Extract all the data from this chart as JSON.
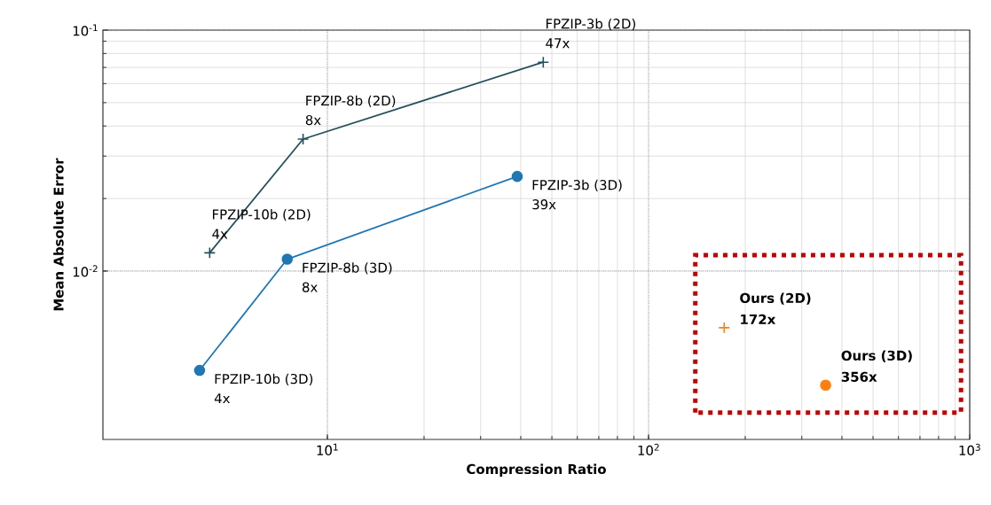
{
  "chart_data": {
    "type": "line",
    "xlabel": "Compression Ratio",
    "ylabel": "Mean Absolute Error",
    "log": "xy",
    "grid": true,
    "xlim": [
      2,
      1000
    ],
    "ylim": [
      0.002,
      0.1
    ],
    "xticks": [
      {
        "value": 10,
        "label": "10$^{1}$"
      },
      {
        "value": 100,
        "label": "10$^{2}$"
      },
      {
        "value": 1000,
        "label": "10$^{3}$"
      }
    ],
    "yticks": [
      {
        "value": 0.01,
        "label": "10$^{-2}$"
      },
      {
        "value": 0.1,
        "label": "10$^{-1}$"
      }
    ],
    "series": [
      {
        "color": "#244f5b",
        "marker": "cross",
        "x": [
          4.3,
          8.4,
          47
        ],
        "values": [
          0.0119,
          0.0353,
          0.0736
        ]
      },
      {
        "color": "#1f77b4",
        "marker": "circle",
        "x": [
          4.0,
          7.5,
          39
        ],
        "values": [
          0.00387,
          0.0112,
          0.0247
        ]
      },
      {
        "type": "scatter",
        "color": "#ff7f0e",
        "marker": "cross",
        "x": [
          172
        ],
        "values": [
          0.00582
        ]
      },
      {
        "type": "scatter",
        "color": "#ff7f0e",
        "marker": "circle",
        "x": [
          356
        ],
        "values": [
          0.00336
        ]
      }
    ],
    "annotations": [
      {
        "text": "FPZIP-10b (2D)",
        "x": 4.3,
        "y": 0.0119
      },
      {
        "text": "4x",
        "x": 4.3,
        "y": 0.0119
      },
      {
        "text": "FPZIP-8b (2D)",
        "x": 8.4,
        "y": 0.0353
      },
      {
        "text": "8x",
        "x": 8.4,
        "y": 0.0353
      },
      {
        "text": "FPZIP-3b (2D)",
        "x": 47,
        "y": 0.0736
      },
      {
        "text": "47x",
        "x": 47,
        "y": 0.0736
      },
      {
        "text": "FPZIP-10b (3D)",
        "x": 4.0,
        "y": 0.00387
      },
      {
        "text": "4x",
        "x": 4.0,
        "y": 0.00387
      },
      {
        "text": "FPZIP-8b (3D)",
        "x": 7.5,
        "y": 0.0112
      },
      {
        "text": "8x",
        "x": 7.5,
        "y": 0.0112
      },
      {
        "text": "FPZIP-3b (3D)",
        "x": 39,
        "y": 0.0247
      },
      {
        "text": "39x",
        "x": 39,
        "y": 0.0247
      },
      {
        "text": "Ours (2D)",
        "x": 172,
        "y": 0.00582
      },
      {
        "text": "172x",
        "x": 172,
        "y": 0.00582
      },
      {
        "text": "Ours (3D)",
        "x": 356,
        "y": 0.00336
      },
      {
        "text": "356x",
        "x": 356,
        "y": 0.00336
      }
    ]
  }
}
